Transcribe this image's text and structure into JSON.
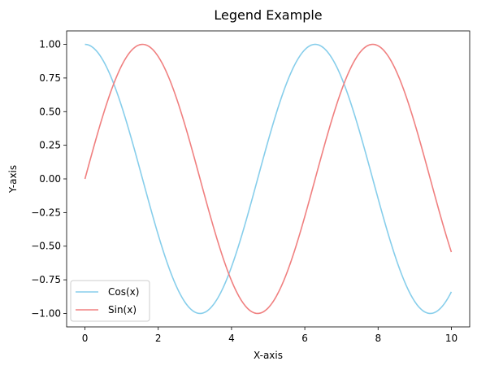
{
  "chart_data": {
    "type": "line",
    "title": "Legend Example",
    "xlabel": "X-axis",
    "ylabel": "Y-axis",
    "xlim": [
      -0.5,
      10.5
    ],
    "ylim": [
      -1.1,
      1.1
    ],
    "xticks": [
      0,
      2,
      4,
      6,
      8,
      10
    ],
    "xtick_labels": [
      "0",
      "2",
      "4",
      "6",
      "8",
      "10"
    ],
    "yticks": [
      -1.0,
      -0.75,
      -0.5,
      -0.25,
      0.0,
      0.25,
      0.5,
      0.75,
      1.0
    ],
    "ytick_labels": [
      "−1.00",
      "−0.75",
      "−0.50",
      "−0.25",
      "0.00",
      "0.25",
      "0.50",
      "0.75",
      "1.00"
    ],
    "grid": false,
    "legend_position": "lower-left",
    "x": [
      0.0,
      0.5,
      1.0,
      1.5,
      2.0,
      2.5,
      3.0,
      3.5,
      4.0,
      4.5,
      5.0,
      5.5,
      6.0,
      6.5,
      7.0,
      7.5,
      8.0,
      8.5,
      9.0,
      9.5,
      10.0
    ],
    "series": [
      {
        "name": "Cos(x)",
        "color": "#87ceeb",
        "function": "cos",
        "values": [
          1.0,
          0.878,
          0.54,
          0.071,
          -0.416,
          -0.801,
          -0.99,
          -0.936,
          -0.654,
          -0.211,
          0.284,
          0.709,
          0.96,
          0.977,
          0.754,
          0.347,
          -0.146,
          -0.602,
          -0.911,
          -0.997,
          -0.839
        ]
      },
      {
        "name": "Sin(x)",
        "color": "#f08080",
        "function": "sin",
        "values": [
          0.0,
          0.479,
          0.841,
          0.997,
          0.909,
          0.598,
          0.141,
          -0.351,
          -0.757,
          -0.978,
          -0.959,
          -0.706,
          -0.279,
          0.215,
          0.657,
          0.938,
          0.989,
          0.798,
          0.412,
          -0.075,
          -0.544
        ]
      }
    ]
  }
}
